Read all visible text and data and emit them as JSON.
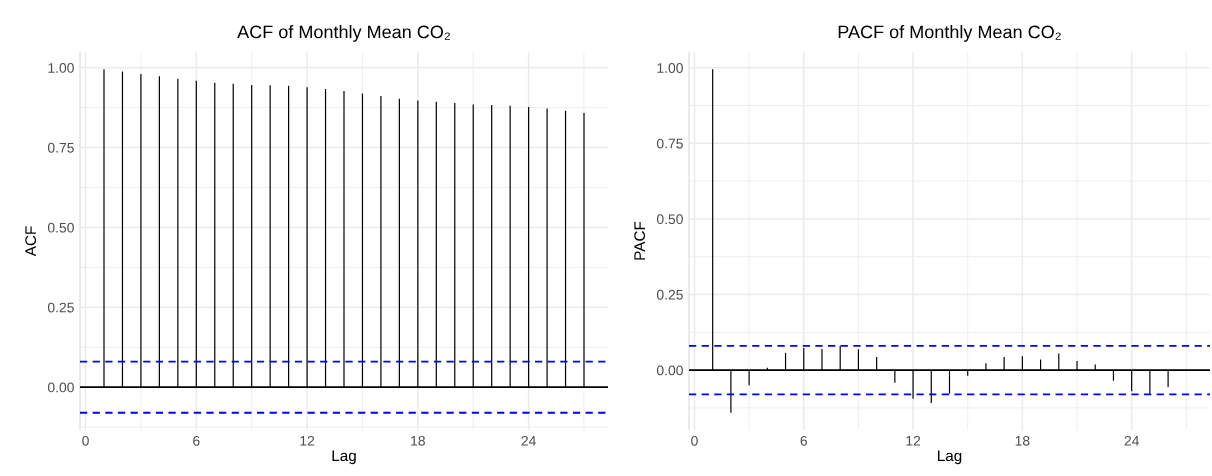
{
  "chart_data": [
    {
      "type": "bar",
      "title": "ACF of Monthly Mean CO₂",
      "xlabel": "Lag",
      "ylabel": "ACF",
      "x": [
        1,
        2,
        3,
        4,
        5,
        6,
        7,
        8,
        9,
        10,
        11,
        12,
        13,
        14,
        15,
        16,
        17,
        18,
        19,
        20,
        21,
        22,
        23,
        24,
        25,
        26,
        27
      ],
      "values": [
        0.995,
        0.988,
        0.98,
        0.973,
        0.965,
        0.959,
        0.953,
        0.95,
        0.946,
        0.945,
        0.943,
        0.939,
        0.933,
        0.927,
        0.919,
        0.911,
        0.903,
        0.897,
        0.893,
        0.889,
        0.885,
        0.883,
        0.881,
        0.877,
        0.872,
        0.865,
        0.858
      ],
      "color": "#000000",
      "xlim": [
        -0.3,
        28.3
      ],
      "xticks": [
        0,
        6,
        12,
        18,
        24
      ],
      "ylim": [
        -0.134,
        1.049
      ],
      "yticks": [
        {
          "value": 0,
          "label": "0.00"
        },
        {
          "value": 0.25,
          "label": "0.25"
        },
        {
          "value": 0.5,
          "label": "0.50"
        },
        {
          "value": 0.75,
          "label": "0.75"
        },
        {
          "value": 1,
          "label": "1.00"
        }
      ],
      "ref_lines": [
        {
          "axis": "y",
          "value": 0,
          "color": "#000000",
          "line_style": "solid"
        },
        {
          "axis": "y",
          "value": 0.08,
          "color": "#0000ff",
          "line_style": "dashed"
        },
        {
          "axis": "y",
          "value": -0.08,
          "color": "#0000ff",
          "line_style": "dashed"
        }
      ],
      "grid": true
    },
    {
      "type": "bar",
      "title": "PACF of Monthly Mean CO₂",
      "xlabel": "Lag",
      "ylabel": "PACF",
      "x": [
        1,
        2,
        3,
        4,
        5,
        6,
        7,
        8,
        9,
        10,
        11,
        12,
        13,
        14,
        15,
        16,
        17,
        18,
        19,
        20,
        21,
        22,
        23,
        24,
        25,
        26
      ],
      "values": [
        0.995,
        -0.141,
        -0.05,
        0.008,
        0.057,
        0.073,
        0.07,
        0.081,
        0.069,
        0.043,
        -0.042,
        -0.095,
        -0.109,
        -0.078,
        -0.019,
        0.023,
        0.043,
        0.046,
        0.035,
        0.055,
        0.03,
        0.019,
        -0.035,
        -0.07,
        -0.079,
        -0.056
      ],
      "color": "#000000",
      "xlim": [
        -0.3,
        28.3
      ],
      "xticks": [
        0,
        6,
        12,
        18,
        24
      ],
      "ylim": [
        -0.198,
        1.052
      ],
      "yticks": [
        {
          "value": 0,
          "label": "0.00"
        },
        {
          "value": 0.25,
          "label": "0.25"
        },
        {
          "value": 0.5,
          "label": "0.50"
        },
        {
          "value": 0.75,
          "label": "0.75"
        },
        {
          "value": 1,
          "label": "1.00"
        }
      ],
      "ref_lines": [
        {
          "axis": "y",
          "value": 0,
          "color": "#000000",
          "line_style": "solid"
        },
        {
          "axis": "y",
          "value": 0.08,
          "color": "#0000ff",
          "line_style": "dashed"
        },
        {
          "axis": "y",
          "value": -0.08,
          "color": "#0000ff",
          "line_style": "dashed"
        }
      ],
      "grid": true
    }
  ]
}
